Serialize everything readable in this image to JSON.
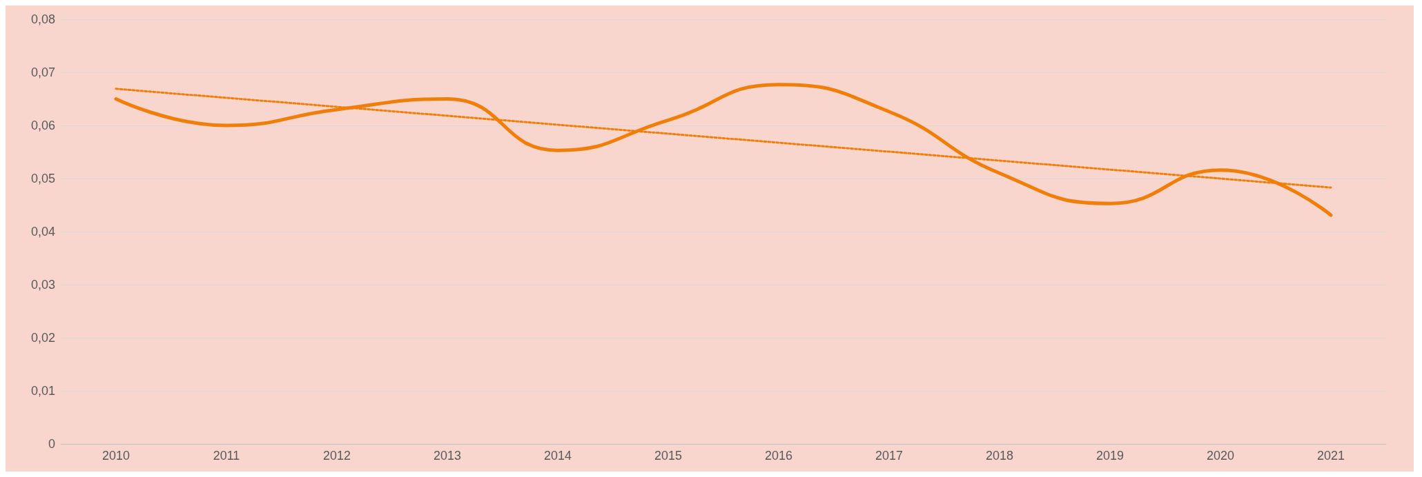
{
  "chart_data": {
    "type": "line",
    "categories": [
      "2010",
      "2011",
      "2012",
      "2013",
      "2014",
      "2015",
      "2016",
      "2017",
      "2018",
      "2019",
      "2020",
      "2021"
    ],
    "series": [
      {
        "color": "#f07f09",
        "values": [
          0.065,
          0.06,
          0.063,
          0.065,
          0.0553,
          0.061,
          0.0677,
          0.0626,
          0.051,
          0.0453,
          0.0516,
          0.0431
        ],
        "line_style": "solid"
      },
      {
        "type": "line",
        "color": "#f07f09",
        "values": [
          0.0669,
          null,
          null,
          null,
          null,
          null,
          null,
          null,
          null,
          null,
          null,
          0.0483
        ],
        "line_style": "dotted"
      }
    ],
    "ylim": [
      0,
      0.08
    ],
    "yticks": [
      0,
      {
        "value": 0.01,
        "label": "0,01"
      },
      {
        "value": 0.02,
        "label": "0,02"
      },
      {
        "value": 0.03,
        "label": "0,03"
      },
      {
        "value": 0.04,
        "label": "0,04"
      },
      {
        "value": 0.05,
        "label": "0,05"
      },
      {
        "value": 0.06,
        "label": "0,06"
      },
      {
        "value": 0.07,
        "label": "0,07"
      },
      {
        "value": 0.08,
        "label": "0,08"
      }
    ],
    "grid": "y",
    "marker": "none"
  }
}
